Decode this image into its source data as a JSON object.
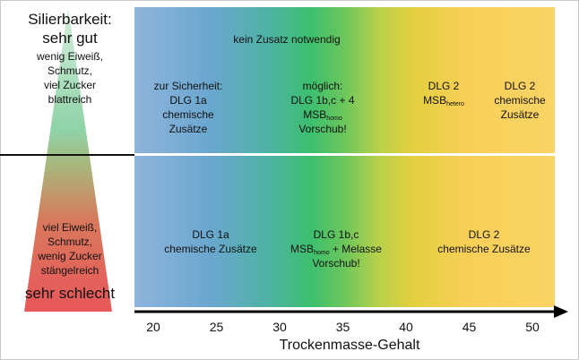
{
  "left_panel": {
    "top_title": "Silierbarkeit:",
    "top_rating": "sehr gut",
    "top_desc": [
      "wenig Eiweiß,",
      "Schmutz,",
      "viel Zucker",
      "blattreich"
    ],
    "bottom_desc": [
      "viel Eiweiß,",
      "Schmutz,",
      "wenig Zucker",
      "stängelreich"
    ],
    "bottom_rating": "sehr schlecht",
    "colors": {
      "top_good": "#8fd3a8",
      "bottom_bad": "#e8575a"
    }
  },
  "top_band": {
    "header": "kein Zusatz notwendig",
    "col1": [
      "zur Sicherheit:",
      "DLG 1a",
      "chemische",
      "Zusätze"
    ],
    "col2": {
      "line1": "möglich:",
      "line2": "DLG 1b,c + 4",
      "msb": "MSB",
      "msb_sub": "homo",
      "line4": "Vorschub!"
    },
    "col3": {
      "line1": "DLG 2",
      "msb": "MSB",
      "msb_sub": "hetero"
    },
    "col4": [
      "DLG 2",
      "chemische",
      "Zusätze"
    ]
  },
  "bottom_band": {
    "col1": [
      "DLG 1a",
      "chemische Zusätze"
    ],
    "col2": {
      "line1": "DLG 1b,c",
      "msb": "MSB",
      "msb_sub": "homo",
      "msb_suffix": " + Melasse",
      "line3": "Vorschub!"
    },
    "col3": [
      "DLG 2",
      "chemische Zusätze"
    ]
  },
  "gradient_colors": [
    "#8eb4dc",
    "#3cbf6e",
    "#fbd366"
  ],
  "axis": {
    "ticks": [
      20,
      25,
      30,
      35,
      40,
      45,
      50
    ],
    "title": "Trockenmasse-Gehalt"
  }
}
